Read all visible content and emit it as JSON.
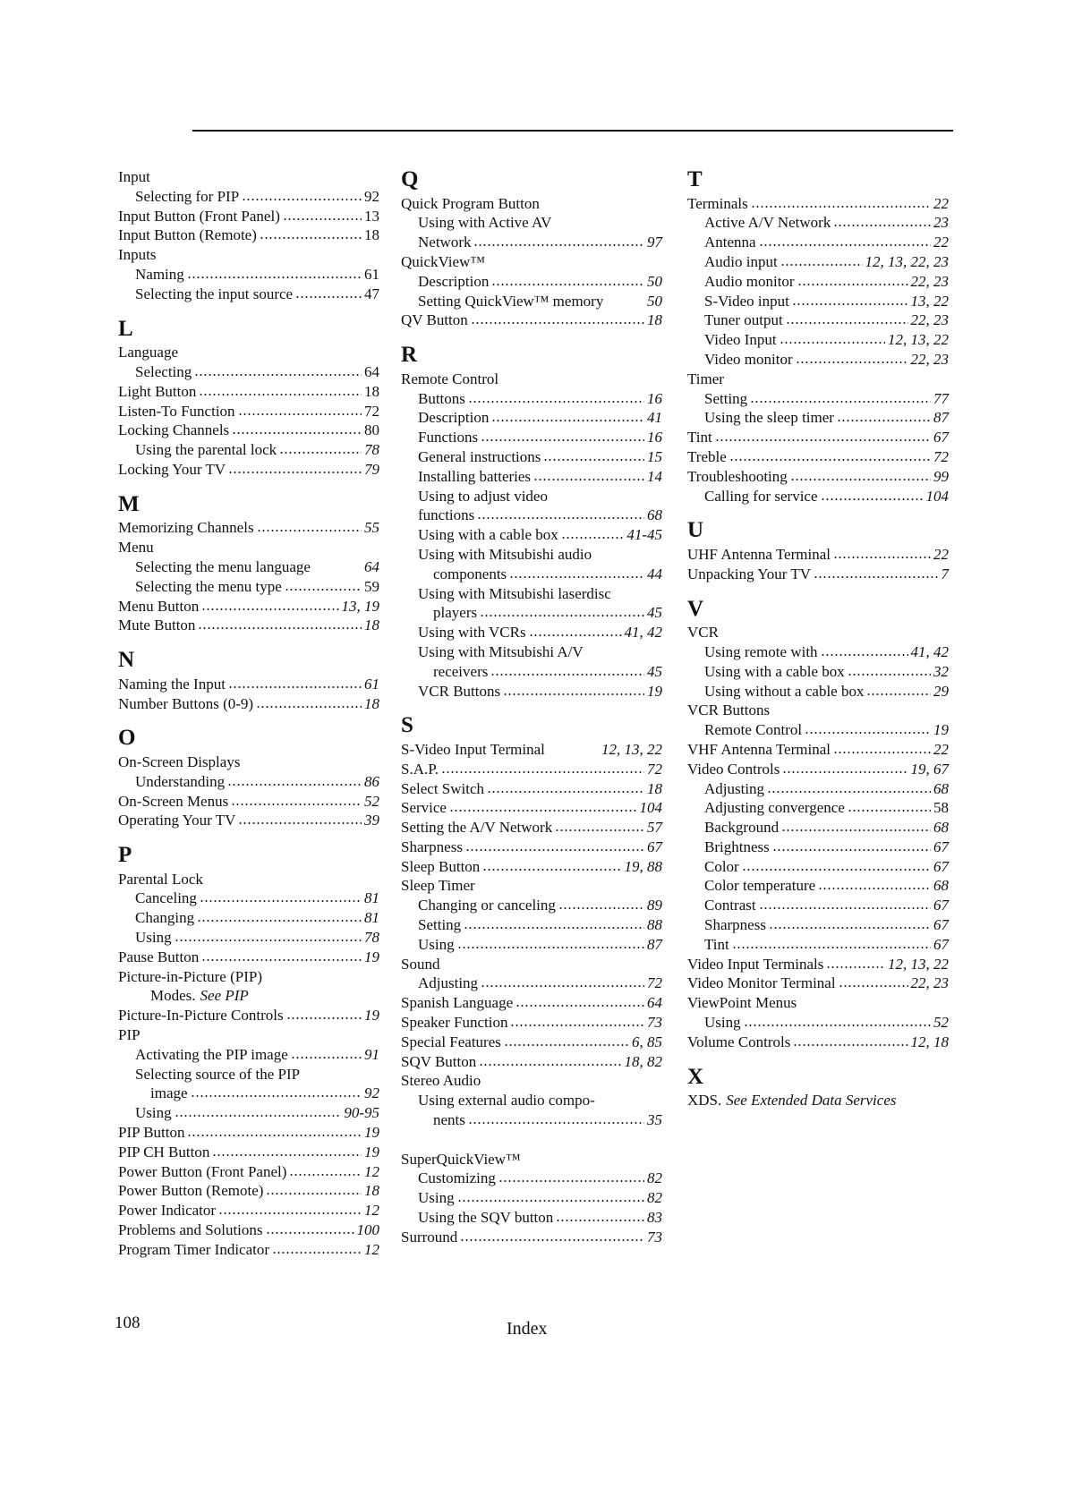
{
  "footer": {
    "page_number": "108",
    "section_title": "Index"
  },
  "columns": [
    [
      {
        "t": "Input"
      },
      {
        "t": "Selecting for PIP",
        "p": "92",
        "l": 1
      },
      {
        "t": "Input Button (Front Panel)",
        "p": "13"
      },
      {
        "t": "Input Button (Remote)",
        "p": "18"
      },
      {
        "t": "Inputs"
      },
      {
        "t": "Naming",
        "p": "61",
        "l": 1
      },
      {
        "t": "Selecting the input source",
        "p": "47",
        "l": 1
      },
      {
        "h": "L"
      },
      {
        "t": "Language"
      },
      {
        "t": "Selecting",
        "p": "64",
        "l": 1
      },
      {
        "t": "Light Button",
        "p": "18"
      },
      {
        "t": "Listen-To Function",
        "p": "72"
      },
      {
        "t": "Locking Channels",
        "p": "80"
      },
      {
        "t": "Using the parental lock",
        "p": "78",
        "l": 1,
        "i": true
      },
      {
        "t": "Locking Your TV",
        "p": "79",
        "i": true
      },
      {
        "h": "M"
      },
      {
        "t": "Memorizing Channels",
        "p": "55",
        "i": true
      },
      {
        "t": "Menu"
      },
      {
        "t": "Selecting the menu language",
        "p": "64",
        "l": 1,
        "i": true,
        "nd": true
      },
      {
        "t": "Selecting the menu type",
        "p": "59",
        "l": 1
      },
      {
        "t": "Menu Button",
        "p": "13, 19",
        "i": true
      },
      {
        "t": "Mute Button",
        "p": "18",
        "i": true
      },
      {
        "h": "N"
      },
      {
        "t": "Naming the Input",
        "p": "61",
        "i": true
      },
      {
        "t": "Number Buttons (0-9)",
        "p": "18",
        "i": true
      },
      {
        "h": "O"
      },
      {
        "t": "On-Screen Displays"
      },
      {
        "t": "Understanding",
        "p": "86",
        "l": 1,
        "i": true
      },
      {
        "t": "On-Screen Menus",
        "p": "52",
        "i": true
      },
      {
        "t": "Operating Your TV",
        "p": "39",
        "i": true
      },
      {
        "h": "P"
      },
      {
        "t": "Parental Lock"
      },
      {
        "t": "Canceling",
        "p": "81",
        "l": 1,
        "i": true
      },
      {
        "t": "Changing",
        "p": "81",
        "l": 1,
        "i": true
      },
      {
        "t": "Using",
        "p": "78",
        "l": 1,
        "i": true
      },
      {
        "t": "Pause Button",
        "p": "19",
        "i": true
      },
      {
        "t": "Picture-in-Picture (PIP)"
      },
      {
        "t": "Modes.",
        "tail": "See PIP",
        "l": 2
      },
      {
        "t": "Picture-In-Picture Controls",
        "p": "19",
        "i": true
      },
      {
        "t": "PIP"
      },
      {
        "t": "Activating the PIP image",
        "p": "91",
        "l": 1,
        "i": true
      },
      {
        "t": "Selecting source of the PIP",
        "l": 1
      },
      {
        "t": "image",
        "p": "92",
        "l": 2,
        "i": true
      },
      {
        "t": "Using",
        "p": "90-95",
        "l": 1,
        "i": true
      },
      {
        "t": "PIP Button",
        "p": "19",
        "i": true
      },
      {
        "t": "PIP CH Button",
        "p": "19",
        "i": true
      },
      {
        "t": "Power Button (Front Panel)",
        "p": "12",
        "i": true
      },
      {
        "t": "Power Button (Remote)",
        "p": "18",
        "i": true
      },
      {
        "t": "Power Indicator",
        "p": "12",
        "i": true
      },
      {
        "t": "Problems and Solutions",
        "p": "100",
        "i": true
      },
      {
        "t": "Program Timer Indicator",
        "p": "12",
        "i": true
      }
    ],
    [
      {
        "h": "Q"
      },
      {
        "t": "Quick Program Button"
      },
      {
        "t": "Using with Active AV",
        "l": 1
      },
      {
        "t": "Network",
        "p": "97",
        "l": 1,
        "i": true
      },
      {
        "t": "QuickView™"
      },
      {
        "t": "Description",
        "p": "50",
        "l": 1,
        "i": true
      },
      {
        "t": "Setting QuickView™ memory",
        "p": "50",
        "l": 1,
        "i": true,
        "nd": true
      },
      {
        "t": "QV Button",
        "p": "18",
        "i": true
      },
      {
        "h": "R"
      },
      {
        "t": "Remote Control"
      },
      {
        "t": "Buttons",
        "p": "16",
        "l": 1,
        "i": true
      },
      {
        "t": "Description",
        "p": "41",
        "l": 1,
        "i": true
      },
      {
        "t": "Functions",
        "p": "16",
        "l": 1,
        "i": true
      },
      {
        "t": "General  instructions",
        "p": "15",
        "l": 1,
        "i": true
      },
      {
        "t": "Installing batteries",
        "p": "14",
        "l": 1,
        "i": true
      },
      {
        "t": "Using to adjust video",
        "l": 1
      },
      {
        "t": "functions",
        "p": "68",
        "l": 1,
        "i": true
      },
      {
        "t": "Using with a cable box",
        "p": "41-45",
        "l": 1,
        "i": true
      },
      {
        "t": "Using with Mitsubishi audio",
        "l": 1
      },
      {
        "t": "components",
        "p": "44",
        "l": 2,
        "i": true
      },
      {
        "t": "Using with Mitsubishi laserdisc",
        "l": 1
      },
      {
        "t": "players",
        "p": "45",
        "l": 2,
        "i": true
      },
      {
        "t": "Using with VCRs",
        "p": "41,  42",
        "l": 1,
        "i": true
      },
      {
        "t": "Using with Mitsubishi A/V",
        "l": 1
      },
      {
        "t": "receivers",
        "p": "45",
        "l": 2,
        "i": true
      },
      {
        "t": "VCR Buttons",
        "p": "19",
        "l": 1,
        "i": true
      },
      {
        "h": "S"
      },
      {
        "t": "S-Video Input Terminal",
        "p": "12, 13, 22",
        "i": true,
        "nd": true
      },
      {
        "t": "S.A.P.",
        "p": "72",
        "i": true
      },
      {
        "t": "Select Switch",
        "p": "18",
        "i": true
      },
      {
        "t": "Service",
        "p": "104",
        "i": true
      },
      {
        "t": "Setting the A/V Network",
        "p": "57",
        "i": true
      },
      {
        "t": "Sharpness",
        "p": "67",
        "i": true
      },
      {
        "t": "Sleep Button",
        "p": "19,  88",
        "i": true
      },
      {
        "t": "Sleep Timer"
      },
      {
        "t": "Changing or canceling",
        "p": "89",
        "l": 1,
        "i": true
      },
      {
        "t": "Setting",
        "p": "88",
        "l": 1,
        "i": true
      },
      {
        "t": "Using",
        "p": "87",
        "l": 1,
        "i": true
      },
      {
        "t": "Sound"
      },
      {
        "t": "Adjusting",
        "p": "72",
        "l": 1,
        "i": true
      },
      {
        "t": "Spanish Language",
        "p": "64",
        "i": true
      },
      {
        "t": "Speaker Function",
        "p": "73",
        "i": true
      },
      {
        "t": "Special Features",
        "p": "6,  85",
        "i": true
      },
      {
        "t": "SQV Button",
        "p": "18,  82",
        "i": true
      },
      {
        "t": "Stereo Audio"
      },
      {
        "t": "Using external audio compo-",
        "l": 1
      },
      {
        "t": "nents",
        "p": "35",
        "l": 2,
        "i": true
      },
      {
        "t": ""
      },
      {
        "t": "SuperQuickView™"
      },
      {
        "t": "Customizing",
        "p": "82",
        "l": 1,
        "i": true
      },
      {
        "t": "Using",
        "p": "82",
        "l": 1,
        "i": true
      },
      {
        "t": "Using the SQV button",
        "p": "83",
        "l": 1,
        "i": true
      },
      {
        "t": "Surround",
        "p": "73",
        "i": true
      }
    ],
    [
      {
        "h": "T"
      },
      {
        "t": "Terminals",
        "p": "22",
        "i": true
      },
      {
        "t": "Active A/V Network",
        "p": "23",
        "l": 1,
        "i": true
      },
      {
        "t": "Antenna",
        "p": "22",
        "l": 1,
        "i": true
      },
      {
        "t": "Audio input",
        "p": "12, 13, 22, 23",
        "l": 1,
        "i": true
      },
      {
        "t": "Audio monitor",
        "p": "22, 23",
        "l": 1,
        "i": true
      },
      {
        "t": "S-Video input",
        "p": "13, 22",
        "l": 1,
        "i": true
      },
      {
        "t": "Tuner output",
        "p": "22, 23",
        "l": 1,
        "i": true
      },
      {
        "t": "Video Input",
        "p": "12, 13, 22",
        "l": 1,
        "i": true
      },
      {
        "t": "Video monitor",
        "p": "22, 23",
        "l": 1,
        "i": true
      },
      {
        "t": "Timer"
      },
      {
        "t": "Setting",
        "p": "77",
        "l": 1,
        "i": true
      },
      {
        "t": "Using the sleep timer",
        "p": "87",
        "l": 1,
        "i": true
      },
      {
        "t": "Tint",
        "p": "67",
        "i": true
      },
      {
        "t": "Treble",
        "p": "72",
        "i": true
      },
      {
        "t": "Troubleshooting",
        "p": "99",
        "i": true
      },
      {
        "t": "Calling for service",
        "p": "104",
        "l": 1,
        "i": true
      },
      {
        "h": "U"
      },
      {
        "t": "UHF Antenna Terminal",
        "p": "22",
        "i": true
      },
      {
        "t": "Unpacking Your TV",
        "p": "7",
        "i": true
      },
      {
        "h": "V"
      },
      {
        "t": "VCR"
      },
      {
        "t": "Using remote with",
        "p": "41, 42",
        "l": 1,
        "i": true
      },
      {
        "t": "Using with a cable box",
        "p": "32",
        "l": 1,
        "i": true
      },
      {
        "t": "Using without a cable box",
        "p": "29",
        "l": 1,
        "i": true
      },
      {
        "t": "VCR Buttons"
      },
      {
        "t": "Remote Control",
        "p": "19",
        "l": 1,
        "i": true
      },
      {
        "t": "VHF Antenna Terminal",
        "p": "22",
        "i": true
      },
      {
        "t": "Video Controls",
        "p": "19,  67",
        "i": true
      },
      {
        "t": "Adjusting",
        "p": "68",
        "l": 1,
        "i": true
      },
      {
        "t": "Adjusting convergence",
        "p": "58",
        "l": 1
      },
      {
        "t": "Background",
        "p": "68",
        "l": 1,
        "i": true
      },
      {
        "t": "Brightness",
        "p": "67",
        "l": 1,
        "i": true
      },
      {
        "t": "Color",
        "p": "67",
        "l": 1,
        "i": true
      },
      {
        "t": "Color temperature",
        "p": "68",
        "l": 1,
        "i": true
      },
      {
        "t": "Contrast",
        "p": "67",
        "l": 1,
        "i": true
      },
      {
        "t": "Sharpness",
        "p": "67",
        "l": 1,
        "i": true
      },
      {
        "t": "Tint",
        "p": "67",
        "l": 1,
        "i": true
      },
      {
        "t": "Video Input Terminals",
        "p": "12, 13, 22",
        "i": true
      },
      {
        "t": "Video Monitor Terminal",
        "p": "22, 23",
        "i": true
      },
      {
        "t": "ViewPoint Menus"
      },
      {
        "t": "Using",
        "p": "52",
        "l": 1,
        "i": true
      },
      {
        "t": "Volume Controls",
        "p": "12,  18",
        "i": true
      },
      {
        "h": "X"
      },
      {
        "t": "XDS.",
        "tail": "See Extended Data Services"
      }
    ]
  ]
}
